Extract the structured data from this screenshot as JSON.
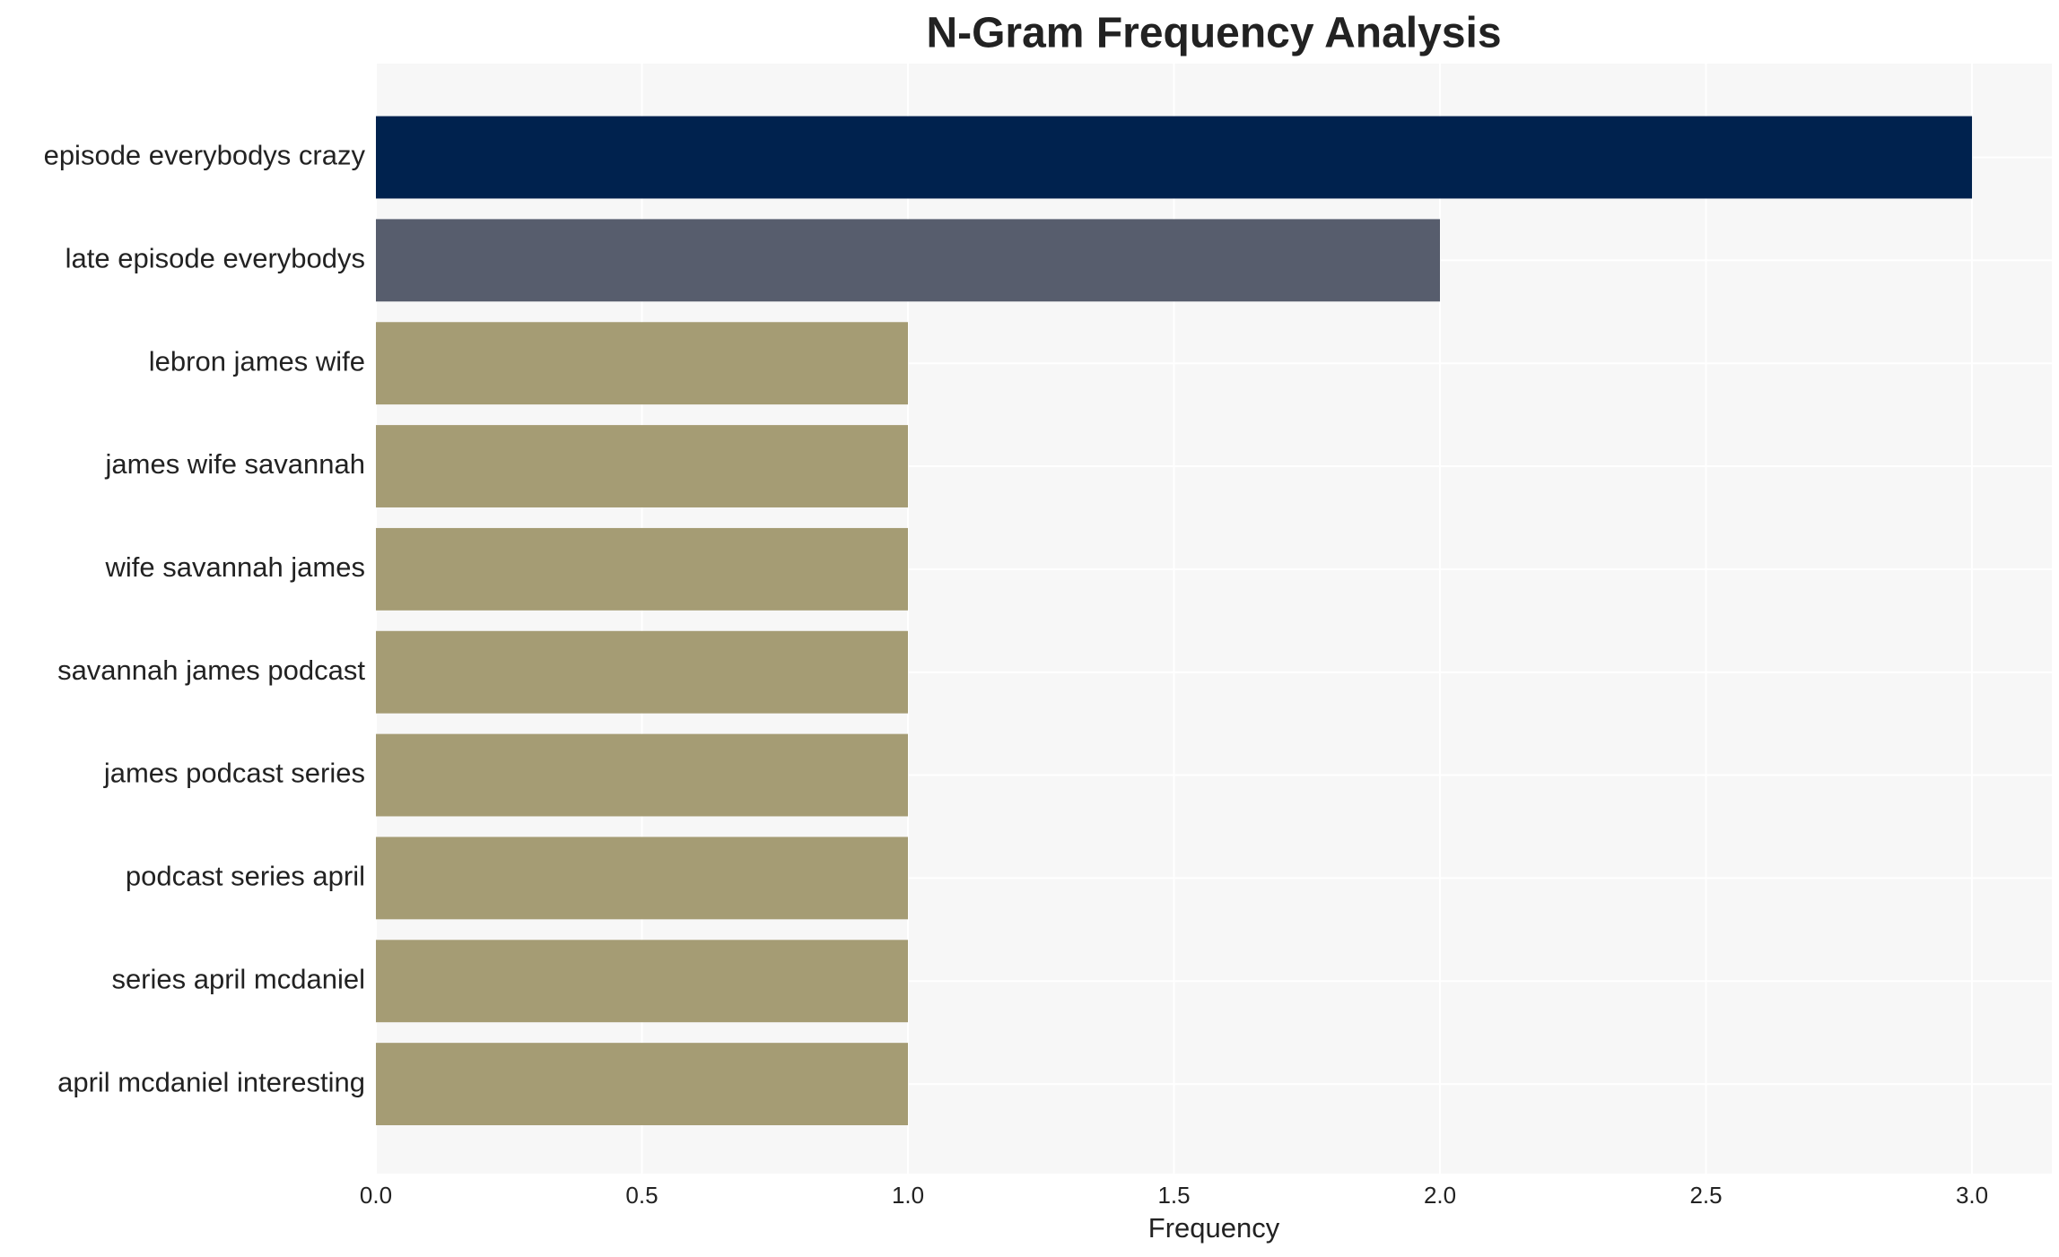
{
  "chart_data": {
    "type": "barh",
    "title": "N-Gram Frequency Analysis",
    "xlabel": "Frequency",
    "categories": [
      "episode everybodys crazy",
      "late episode everybodys",
      "lebron james wife",
      "james wife savannah",
      "wife savannah james",
      "savannah james podcast",
      "james podcast series",
      "podcast series april",
      "series april mcdaniel",
      "april mcdaniel interesting"
    ],
    "values": [
      3,
      2,
      1,
      1,
      1,
      1,
      1,
      1,
      1,
      1
    ],
    "colors": [
      "#00224e",
      "#575d6d",
      "#a59c74",
      "#a59c74",
      "#a59c74",
      "#a59c74",
      "#a59c74",
      "#a59c74",
      "#a59c74",
      "#a59c74"
    ],
    "xlim": [
      0,
      3.15
    ],
    "xticks": [
      {
        "value": 0,
        "label": "0.0"
      },
      {
        "value": 0.5,
        "label": "0.5"
      },
      {
        "value": 1,
        "label": "1.0"
      },
      {
        "value": 1.5,
        "label": "1.5"
      },
      {
        "value": 2,
        "label": "2.0"
      },
      {
        "value": 2.5,
        "label": "2.5"
      },
      {
        "value": 3,
        "label": "3.0"
      }
    ],
    "grid": true
  }
}
